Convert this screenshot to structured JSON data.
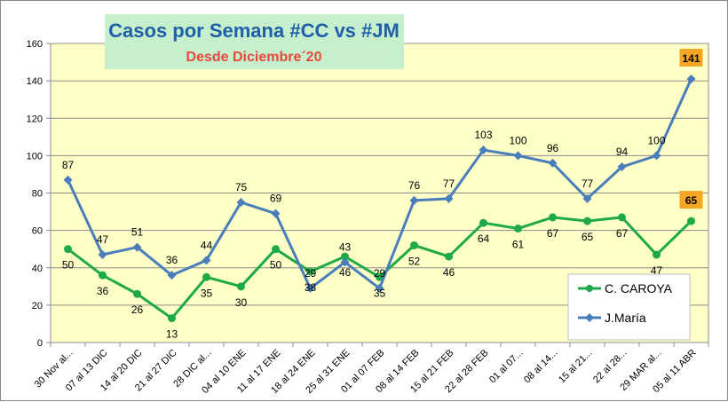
{
  "chart_data": {
    "type": "line",
    "title": "Casos por Semana #CC vs #JM",
    "subtitle": "Desde Diciembre´20",
    "ylim": [
      0,
      160
    ],
    "yticks": [
      0,
      20,
      40,
      60,
      80,
      100,
      120,
      140,
      160
    ],
    "categories": [
      "30 Nov al...",
      "07 al 13 DIC",
      "14 al 20 DIC",
      "21 al 27 DIC",
      "28 DIC al...",
      "04 al 10 ENE",
      "11 al 17 ENE",
      "18 al 24 ENE",
      "25 al 31 ENE",
      "01 al 07 FEB",
      "08 al 14 FEB",
      "15 al 21 FEB",
      "22 al 28 FEB",
      "01 al 07...",
      "08 al 14...",
      "15 al 21...",
      "22 al 28...",
      "29 MAR al...",
      "05 al 11 ABR"
    ],
    "series": [
      {
        "name": "C. CAROYA",
        "color": "#1faa4a",
        "values": [
          50,
          36,
          26,
          13,
          35,
          30,
          50,
          38,
          46,
          35,
          52,
          46,
          64,
          61,
          67,
          65,
          67,
          47,
          65
        ]
      },
      {
        "name": "J.María",
        "color": "#4a7ebb",
        "values": [
          87,
          47,
          51,
          36,
          44,
          75,
          69,
          29,
          43,
          29,
          76,
          77,
          103,
          100,
          96,
          77,
          94,
          100,
          141
        ]
      }
    ],
    "legend": "bottom-right",
    "grid": "horizontal",
    "highlight_last": true,
    "highlight_color": "#f5a623",
    "highlight_text_color": "#c00000"
  }
}
